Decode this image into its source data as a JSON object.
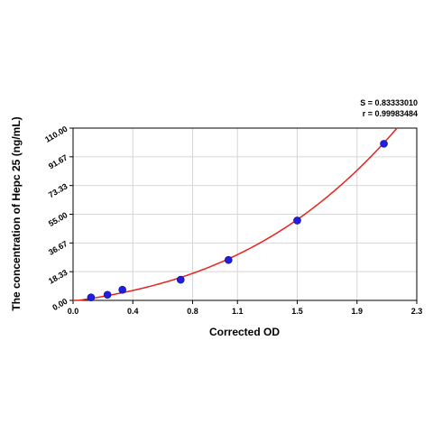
{
  "chart_data": {
    "type": "scatter",
    "title": "",
    "xlabel": "Corrected OD",
    "ylabel": "The concentration of Hepc 25 (ng/mL)",
    "xlim": [
      0.0,
      2.3
    ],
    "ylim": [
      0.0,
      110.0
    ],
    "x_ticks": [
      "0.0",
      "0.4",
      "0.8",
      "1.1",
      "1.5",
      "1.9",
      "2.3"
    ],
    "y_ticks": [
      "0.00",
      "18.33",
      "36.67",
      "55.00",
      "73.33",
      "91.67",
      "110.00"
    ],
    "grid": true,
    "points": [
      {
        "x": 0.12,
        "y": 1.9
      },
      {
        "x": 0.23,
        "y": 3.6
      },
      {
        "x": 0.33,
        "y": 6.8
      },
      {
        "x": 0.72,
        "y": 13.2
      },
      {
        "x": 1.04,
        "y": 25.8
      },
      {
        "x": 1.5,
        "y": 51.0
      },
      {
        "x": 2.08,
        "y": 100.0
      }
    ],
    "fit_curve": {
      "type": "polynomial",
      "coefficients": [
        -0.5,
        13.5,
        7.1,
        4.7
      ],
      "color": "#e8231b"
    },
    "stats": {
      "s": "S = 0.83333010",
      "r": "r = 0.99983484"
    },
    "colors": {
      "point": "#1f1fe0",
      "curve": "#e8231b",
      "grid": "#d6d6d6"
    }
  }
}
